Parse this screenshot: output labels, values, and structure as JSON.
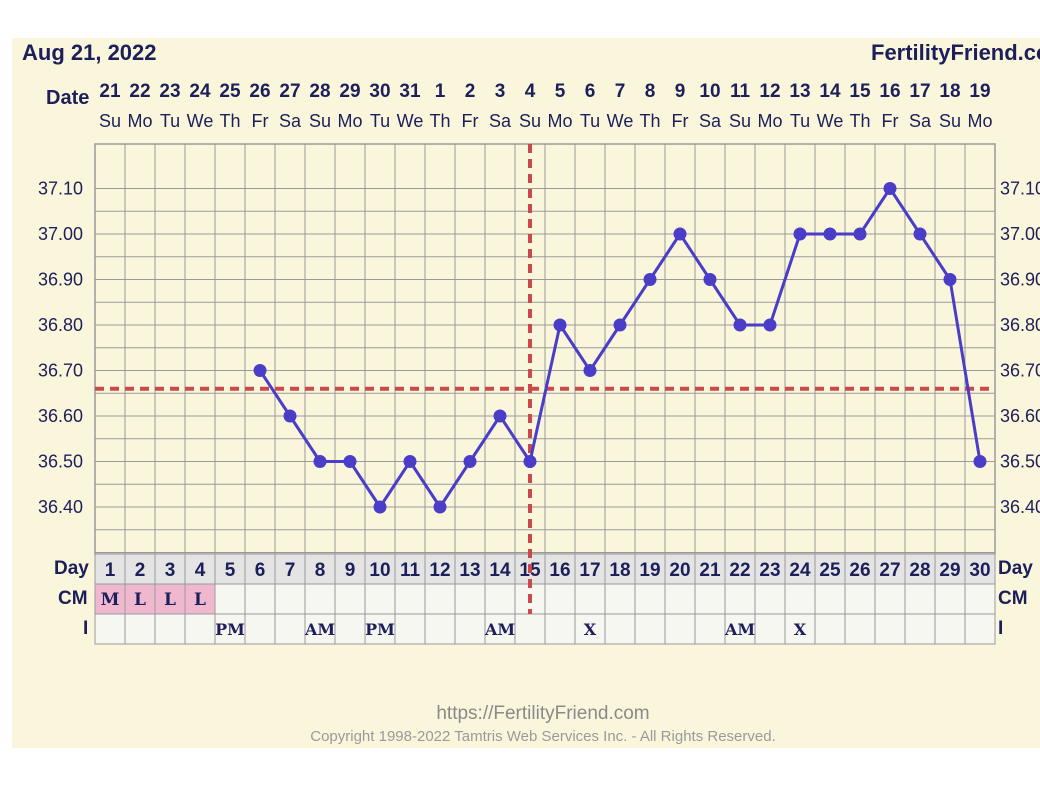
{
  "header": {
    "date": "Aug 21, 2022",
    "brand": "FertilityFriend.com"
  },
  "row_labels": {
    "date": "Date",
    "day": "Day",
    "cm": "CM",
    "intercourse": "I"
  },
  "footer": {
    "url": "https://FertilityFriend.com",
    "copyright": "Copyright 1998-2022 Tamtris Web Services Inc. - All Rights Reserved."
  },
  "colors": {
    "line": "#4a3dc8",
    "dashed": "#c9494d",
    "cm_fill": "#f0b8cf",
    "grid": "#9a9a9a",
    "panel": "#faf6dc"
  },
  "chart_data": {
    "type": "line",
    "dates": [
      "21",
      "22",
      "23",
      "24",
      "25",
      "26",
      "27",
      "28",
      "29",
      "30",
      "31",
      "1",
      "2",
      "3",
      "4",
      "5",
      "6",
      "7",
      "8",
      "9",
      "10",
      "11",
      "12",
      "13",
      "14",
      "15",
      "16",
      "17",
      "18",
      "19"
    ],
    "weekdays": [
      "Su",
      "Mo",
      "Tu",
      "We",
      "Th",
      "Fr",
      "Sa",
      "Su",
      "Mo",
      "Tu",
      "We",
      "Th",
      "Fr",
      "Sa",
      "Su",
      "Mo",
      "Tu",
      "We",
      "Th",
      "Fr",
      "Sa",
      "Su",
      "Mo",
      "Tu",
      "We",
      "Th",
      "Fr",
      "Sa",
      "Su",
      "Mo"
    ],
    "days": [
      1,
      2,
      3,
      4,
      5,
      6,
      7,
      8,
      9,
      10,
      11,
      12,
      13,
      14,
      15,
      16,
      17,
      18,
      19,
      20,
      21,
      22,
      23,
      24,
      25,
      26,
      27,
      28,
      29,
      30
    ],
    "temps": [
      null,
      null,
      null,
      null,
      null,
      36.7,
      36.6,
      36.5,
      36.5,
      36.4,
      36.5,
      36.4,
      36.5,
      36.6,
      36.5,
      36.8,
      36.7,
      36.8,
      36.9,
      37.0,
      36.9,
      36.8,
      36.8,
      37.0,
      37.0,
      37.0,
      37.1,
      37.0,
      36.9,
      36.5
    ],
    "yticks": [
      "37.10",
      "37.00",
      "36.90",
      "36.80",
      "36.70",
      "36.60",
      "36.50",
      "36.40"
    ],
    "ylim": [
      36.3,
      37.2
    ],
    "coverline": 36.66,
    "ovulation_day": 15,
    "cm": [
      "M",
      "L",
      "L",
      "L",
      "",
      "",
      "",
      "",
      "",
      "",
      "",
      "",
      "",
      "",
      "",
      "",
      "",
      "",
      "",
      "",
      "",
      "",
      "",
      "",
      "",
      "",
      "",
      "",
      "",
      ""
    ],
    "intercourse": [
      "",
      "",
      "",
      "",
      "PM",
      "",
      "",
      "AM",
      "",
      "PM",
      "",
      "",
      "",
      "AM",
      "",
      "",
      "X",
      "",
      "",
      "",
      "",
      "AM",
      "",
      "X",
      "",
      "",
      "",
      "",
      "",
      ""
    ],
    "grid": true
  }
}
